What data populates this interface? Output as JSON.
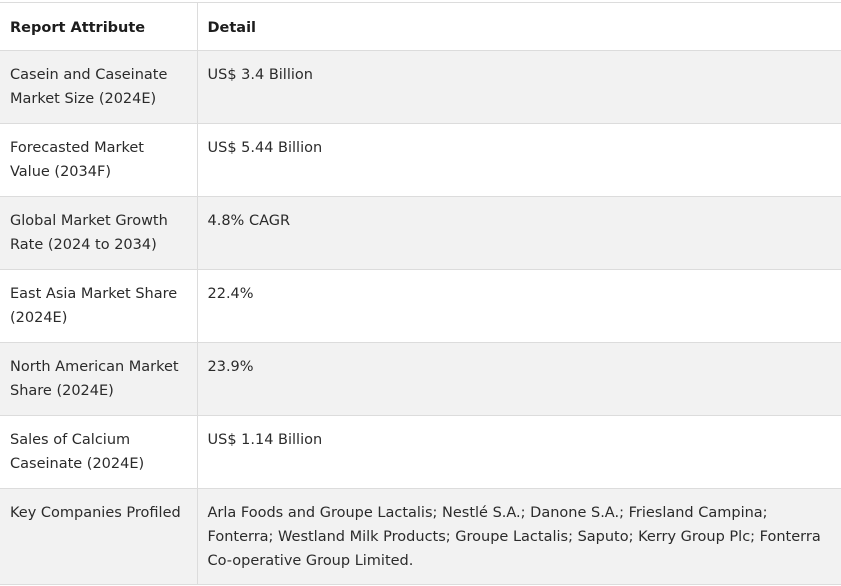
{
  "table": {
    "headers": [
      "Report Attribute",
      "Detail"
    ],
    "rows": [
      {
        "attribute": "Casein and Caseinate Market Size (2024E)",
        "detail": "US$ 3.4 Billion"
      },
      {
        "attribute": "Forecasted Market Value (2034F)",
        "detail": "US$ 5.44 Billion"
      },
      {
        "attribute": "Global Market Growth Rate (2024 to 2034)",
        "detail": "4.8% CAGR"
      },
      {
        "attribute": "East Asia Market Share (2024E)",
        "detail": "22.4%"
      },
      {
        "attribute": "North American Market Share (2024E)",
        "detail": "23.9%"
      },
      {
        "attribute": "Sales of Calcium Caseinate (2024E)",
        "detail": "US$ 1.14 Billion"
      },
      {
        "attribute": "Key Companies Profiled",
        "detail": "Arla Foods and Groupe Lactalis; Nestlé S.A.; Danone S.A.; Friesland Campina; Fonterra; Westland Milk Products; Groupe Lactalis; Saputo; Kerry Group Plc; Fonterra Co-operative Group Limited."
      }
    ]
  }
}
